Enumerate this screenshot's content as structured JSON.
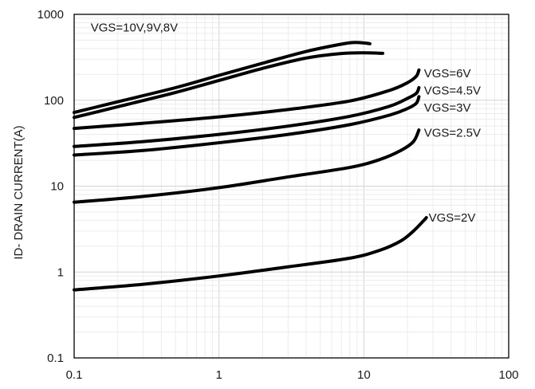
{
  "chart_data": {
    "type": "line",
    "title": "",
    "xlabel": "",
    "ylabel": "ID- DRAIN CURRENT(A)",
    "x_scale": "log",
    "y_scale": "log",
    "xlim": [
      0.1,
      100
    ],
    "ylim": [
      0.1,
      1000
    ],
    "grid": true,
    "x_ticks": [
      0.1,
      1,
      10,
      100
    ],
    "y_ticks": [
      0.1,
      1,
      10,
      100,
      1000
    ],
    "x_tick_labels": [
      "0.1",
      "1",
      "10",
      "100"
    ],
    "y_tick_labels": [
      "0.1",
      "1",
      "10",
      "100",
      "1000"
    ],
    "series": [
      {
        "name": "VGS=10V,9V,8V",
        "points": [
          [
            0.1,
            72
          ],
          [
            0.2,
            96
          ],
          [
            0.5,
            140
          ],
          [
            1,
            195
          ],
          [
            2,
            270
          ],
          [
            4,
            370
          ],
          [
            7,
            450
          ],
          [
            8.5,
            470
          ],
          [
            10,
            465
          ],
          [
            11,
            455
          ]
        ]
      },
      {
        "name": "",
        "points": [
          [
            0.1,
            63
          ],
          [
            0.2,
            84
          ],
          [
            0.5,
            123
          ],
          [
            1,
            170
          ],
          [
            2,
            235
          ],
          [
            4,
            310
          ],
          [
            7,
            350
          ],
          [
            10,
            357
          ],
          [
            13.5,
            352
          ]
        ]
      },
      {
        "name": "VGS=6V",
        "points": [
          [
            0.1,
            47
          ],
          [
            0.3,
            54
          ],
          [
            1,
            64
          ],
          [
            3,
            78
          ],
          [
            8,
            98
          ],
          [
            15,
            130
          ],
          [
            20,
            160
          ],
          [
            23,
            190
          ],
          [
            24,
            225
          ]
        ]
      },
      {
        "name": "VGS=4.5V",
        "points": [
          [
            0.1,
            29
          ],
          [
            0.3,
            33
          ],
          [
            1,
            40
          ],
          [
            3,
            50
          ],
          [
            8,
            65
          ],
          [
            15,
            85
          ],
          [
            20,
            105
          ],
          [
            23,
            120
          ],
          [
            24,
            140
          ]
        ]
      },
      {
        "name": "VGS=3V",
        "points": [
          [
            0.1,
            23
          ],
          [
            0.3,
            26
          ],
          [
            1,
            32
          ],
          [
            3,
            40
          ],
          [
            8,
            52
          ],
          [
            15,
            67
          ],
          [
            20,
            80
          ],
          [
            23,
            92
          ],
          [
            24,
            110
          ]
        ]
      },
      {
        "name": "VGS=2.5V",
        "points": [
          [
            0.1,
            6.5
          ],
          [
            0.3,
            7.6
          ],
          [
            1,
            9.6
          ],
          [
            3,
            12.8
          ],
          [
            8,
            16.5
          ],
          [
            13,
            20.5
          ],
          [
            18,
            26
          ],
          [
            22,
            33
          ],
          [
            24,
            45
          ]
        ]
      },
      {
        "name": "VGS=2V",
        "points": [
          [
            0.1,
            0.62
          ],
          [
            0.3,
            0.72
          ],
          [
            1,
            0.9
          ],
          [
            3,
            1.15
          ],
          [
            8,
            1.45
          ],
          [
            13,
            1.8
          ],
          [
            18,
            2.3
          ],
          [
            22,
            3
          ],
          [
            26,
            4
          ],
          [
            27,
            4.3
          ]
        ]
      }
    ],
    "annotations": [
      {
        "text": "VGS=10V,9V,8V",
        "x": 0.13,
        "y": 700
      },
      {
        "text": "VGS=6V",
        "x": 26,
        "y": 205
      },
      {
        "text": "VGS=4.5V",
        "x": 26,
        "y": 130
      },
      {
        "text": "VGS=3V",
        "x": 26,
        "y": 82
      },
      {
        "text": "VGS=2.5V",
        "x": 26,
        "y": 42
      },
      {
        "text": "VGS=2V",
        "x": 28,
        "y": 4.3
      }
    ]
  }
}
